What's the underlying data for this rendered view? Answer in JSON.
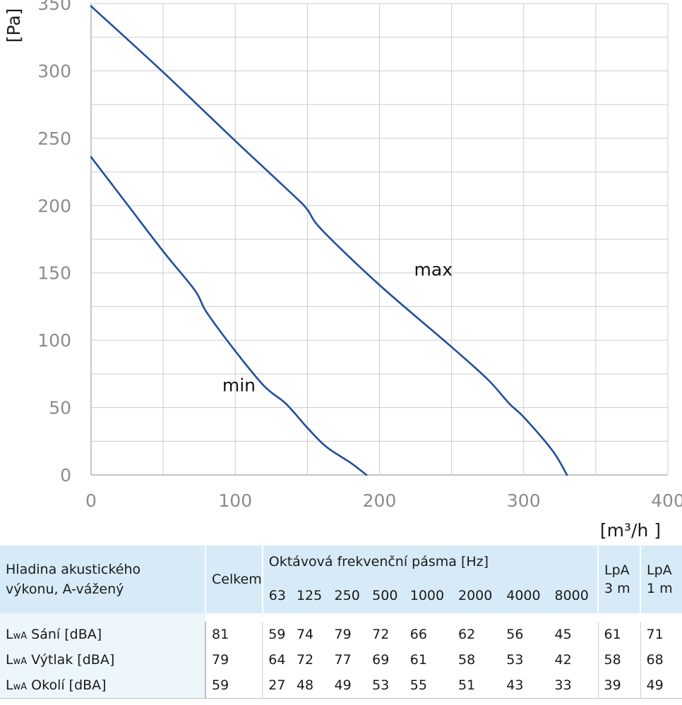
{
  "chart_data": {
    "type": "line",
    "xlim": [
      0,
      400
    ],
    "ylim": [
      0,
      350
    ],
    "x_ticks": [
      "0",
      "100",
      "200",
      "300",
      "400"
    ],
    "y_ticks": [
      "0",
      "50",
      "100",
      "150",
      "200",
      "250",
      "300",
      "350"
    ],
    "xlabel": "[m³/h ]",
    "ylabel": "[Pa]",
    "grid": true,
    "series": [
      {
        "name": "max",
        "color": "#1f4e9c",
        "points": [
          [
            0,
            348
          ],
          [
            50,
            299
          ],
          [
            100,
            248
          ],
          [
            140,
            208
          ],
          [
            150,
            197
          ],
          [
            160,
            182
          ],
          [
            200,
            141
          ],
          [
            250,
            95
          ],
          [
            275,
            71
          ],
          [
            290,
            53
          ],
          [
            300,
            43
          ],
          [
            320,
            18
          ],
          [
            330,
            0
          ]
        ]
      },
      {
        "name": "min",
        "color": "#1f4e9c",
        "points": [
          [
            0,
            236
          ],
          [
            25,
            201
          ],
          [
            50,
            166
          ],
          [
            72,
            137
          ],
          [
            80,
            121
          ],
          [
            100,
            92
          ],
          [
            120,
            66
          ],
          [
            135,
            53
          ],
          [
            150,
            35
          ],
          [
            163,
            21
          ],
          [
            180,
            9
          ],
          [
            191,
            0
          ]
        ]
      }
    ],
    "annotations": [
      {
        "text": "max",
        "x": 224,
        "y": 148
      },
      {
        "text": "min",
        "x": 91,
        "y": 62
      }
    ]
  },
  "table": {
    "header_label": "Hladina akustického výkonu, A-vážený",
    "header_label_line1": "Hladina akustického",
    "header_label_line2": "výkonu, A-vážený",
    "total_label": "Celkem",
    "band_group_label": "Oktávová frekvenční pásma [Hz]",
    "bands": [
      "63",
      "125",
      "250",
      "500",
      "1000",
      "2000",
      "4000",
      "8000"
    ],
    "lpa3_line1": "LpA",
    "lpa3_line2": "3 m",
    "lpa1_line1": "LpA",
    "lpa1_line2": "1 m",
    "rows": [
      {
        "prefix": "L",
        "sub": "wA",
        "label": " Sání [dBA]",
        "total": "81",
        "bands": [
          "59",
          "74",
          "79",
          "72",
          "66",
          "62",
          "56",
          "45"
        ],
        "lpa3": "61",
        "lpa1": "71"
      },
      {
        "prefix": "L",
        "sub": "wA",
        "label": " Výtlak [dBA]",
        "total": "79",
        "bands": [
          "64",
          "72",
          "77",
          "69",
          "61",
          "58",
          "53",
          "42"
        ],
        "lpa3": "58",
        "lpa1": "68"
      },
      {
        "prefix": "L",
        "sub": "wA",
        "label": " Okolí [dBA]",
        "total": "59",
        "bands": [
          "27",
          "48",
          "49",
          "53",
          "55",
          "51",
          "43",
          "33"
        ],
        "lpa3": "39",
        "lpa1": "49"
      }
    ]
  }
}
